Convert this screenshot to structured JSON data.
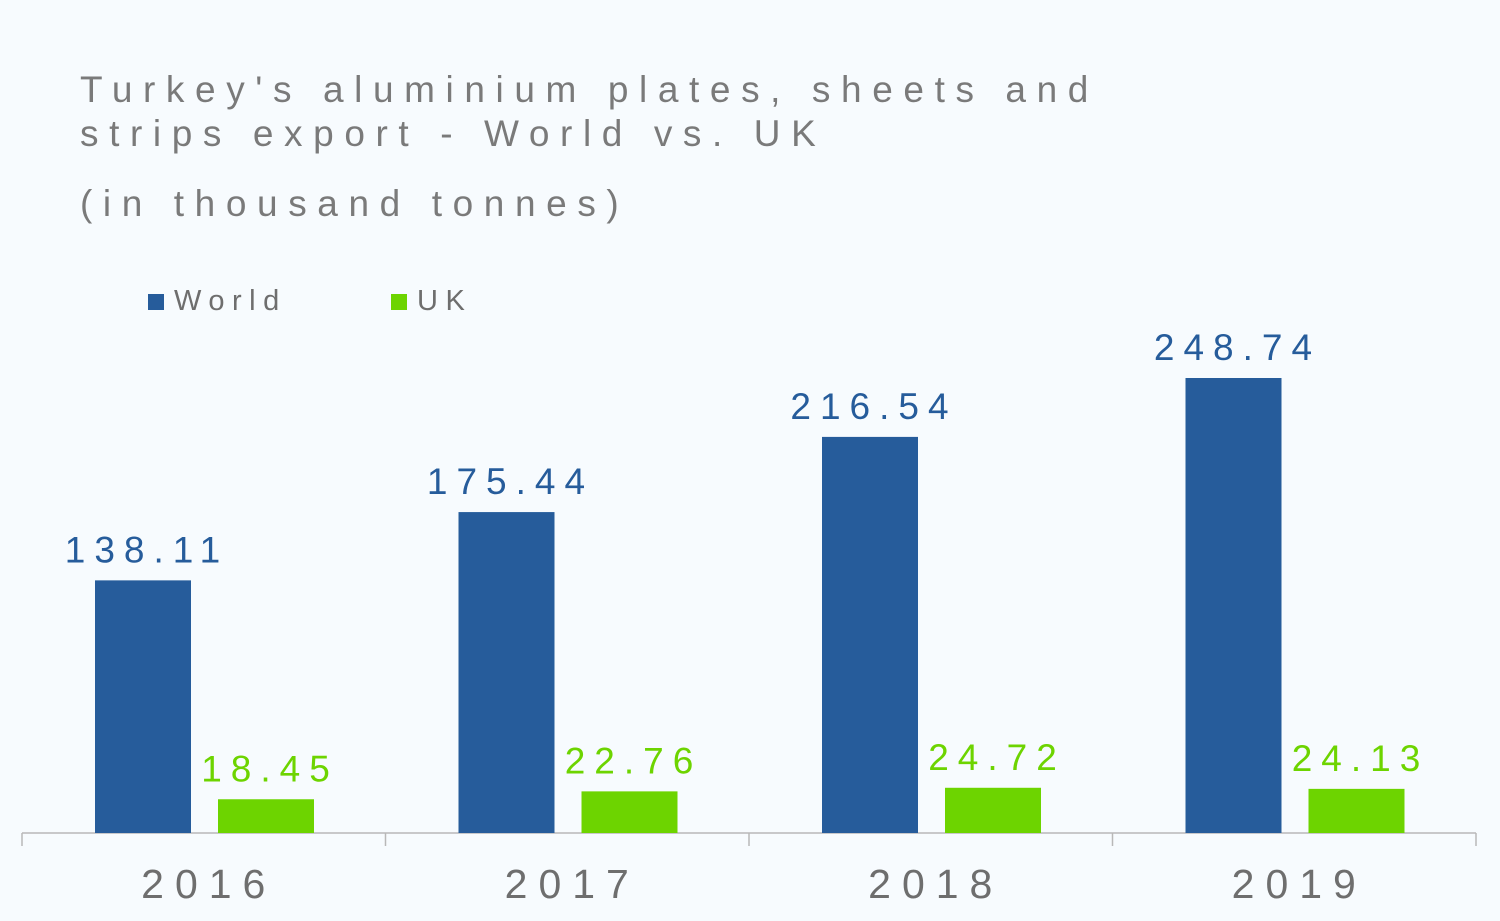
{
  "chart_data": {
    "type": "bar",
    "title": "Turkey's aluminium plates, sheets and\nstrips export - World vs. UK",
    "subtitle": "(in thousand tonnes)",
    "categories": [
      "2016",
      "2017",
      "2018",
      "2019"
    ],
    "series": [
      {
        "name": "World",
        "color": "#265c9b",
        "values": [
          138.11,
          175.44,
          216.54,
          248.74
        ],
        "labels": [
          "138.11",
          "175.44",
          "216.54",
          "248.74"
        ]
      },
      {
        "name": "UK",
        "color": "#6dd400",
        "values": [
          18.45,
          22.76,
          24.72,
          24.13
        ],
        "labels": [
          "18.45",
          "22.76",
          "24.72",
          "24.13"
        ]
      }
    ],
    "ylim": [
      0,
      250
    ],
    "grid": false,
    "legend": "top-left"
  }
}
